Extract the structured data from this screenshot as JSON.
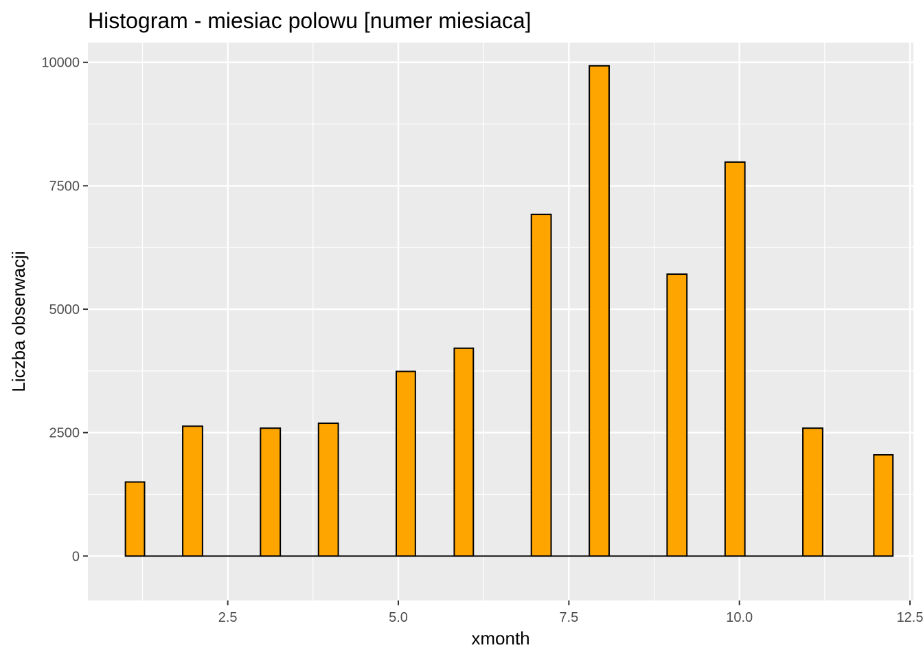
{
  "chart_data": {
    "type": "bar",
    "title": "Histogram - miesiac polowu [numer miesiaca]",
    "xlabel": "xmonth",
    "ylabel": "Liczba obserwacji",
    "xlim": [
      0.45,
      12.55
    ],
    "ylim": [
      -900,
      10400
    ],
    "x_ticks": [
      {
        "value": 2.5,
        "label": "2.5"
      },
      {
        "value": 5.0,
        "label": "5.0"
      },
      {
        "value": 7.5,
        "label": "7.5"
      },
      {
        "value": 10.0,
        "label": "10.0"
      },
      {
        "value": 12.5,
        "label": "12.5"
      }
    ],
    "y_ticks": [
      {
        "value": 0,
        "label": "0"
      },
      {
        "value": 2500,
        "label": "2500"
      },
      {
        "value": 5000,
        "label": "5000"
      },
      {
        "value": 7500,
        "label": "7500"
      },
      {
        "value": 10000,
        "label": "10000"
      }
    ],
    "bin_range": [
      1.0,
      12.25
    ],
    "bins": [
      {
        "x_start": 1.0,
        "x_end": 1.28,
        "count": 1500
      },
      {
        "x_start": 1.84,
        "x_end": 2.13,
        "count": 2630
      },
      {
        "x_start": 2.98,
        "x_end": 3.27,
        "count": 2590
      },
      {
        "x_start": 3.83,
        "x_end": 4.12,
        "count": 2690
      },
      {
        "x_start": 4.97,
        "x_end": 5.25,
        "count": 3740
      },
      {
        "x_start": 5.82,
        "x_end": 6.1,
        "count": 4210
      },
      {
        "x_start": 6.95,
        "x_end": 7.24,
        "count": 6920
      },
      {
        "x_start": 7.8,
        "x_end": 8.09,
        "count": 9930
      },
      {
        "x_start": 8.94,
        "x_end": 9.23,
        "count": 5710
      },
      {
        "x_start": 9.79,
        "x_end": 10.08,
        "count": 7980
      },
      {
        "x_start": 10.93,
        "x_end": 11.22,
        "count": 2590
      },
      {
        "x_start": 11.97,
        "x_end": 12.25,
        "count": 2050
      }
    ],
    "colors": {
      "bar_fill": "#FFA500",
      "bar_stroke": "#000000",
      "panel_background": "#EBEBEB",
      "grid": "#FFFFFF",
      "tick_label": "#4D4D4D"
    },
    "grid": true,
    "legend": "none"
  }
}
